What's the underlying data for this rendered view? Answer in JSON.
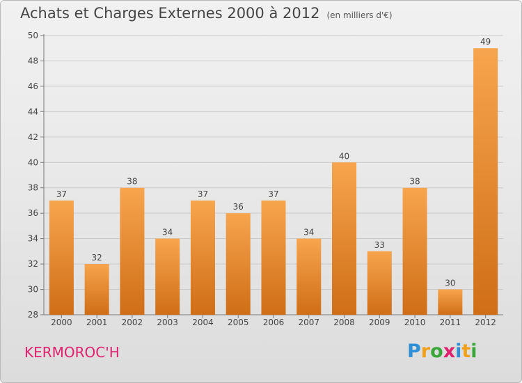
{
  "title": "Achats et Charges Externes 2000 à 2012",
  "unit_note": "(en milliers d'€)",
  "commune": "KERMOROC'H",
  "logo": {
    "letters": [
      "P",
      "r",
      "o",
      "x",
      "i",
      "t",
      "i"
    ],
    "colors": [
      "#2e8fd6",
      "#f0a11c",
      "#3aa63a",
      "#e0226e",
      "#2e8fd6",
      "#f0a11c",
      "#3aa63a"
    ]
  },
  "colors": {
    "bar_light": "#f7a54e",
    "bar_dark": "#cf6e16",
    "grid": "#c9c9c9",
    "commune": "#e0226e"
  },
  "chart_data": {
    "type": "bar",
    "title": "Achats et Charges Externes 2000 à 2012",
    "categories": [
      "2000",
      "2001",
      "2002",
      "2003",
      "2004",
      "2005",
      "2006",
      "2007",
      "2008",
      "2009",
      "2010",
      "2011",
      "2012"
    ],
    "values": [
      37,
      32,
      38,
      34,
      37,
      36,
      37,
      34,
      40,
      33,
      38,
      30,
      49
    ],
    "ylim": [
      28,
      50
    ],
    "yticks": [
      28,
      30,
      32,
      34,
      36,
      38,
      40,
      42,
      44,
      46,
      48,
      50
    ],
    "grid": true,
    "data_labels": true
  }
}
